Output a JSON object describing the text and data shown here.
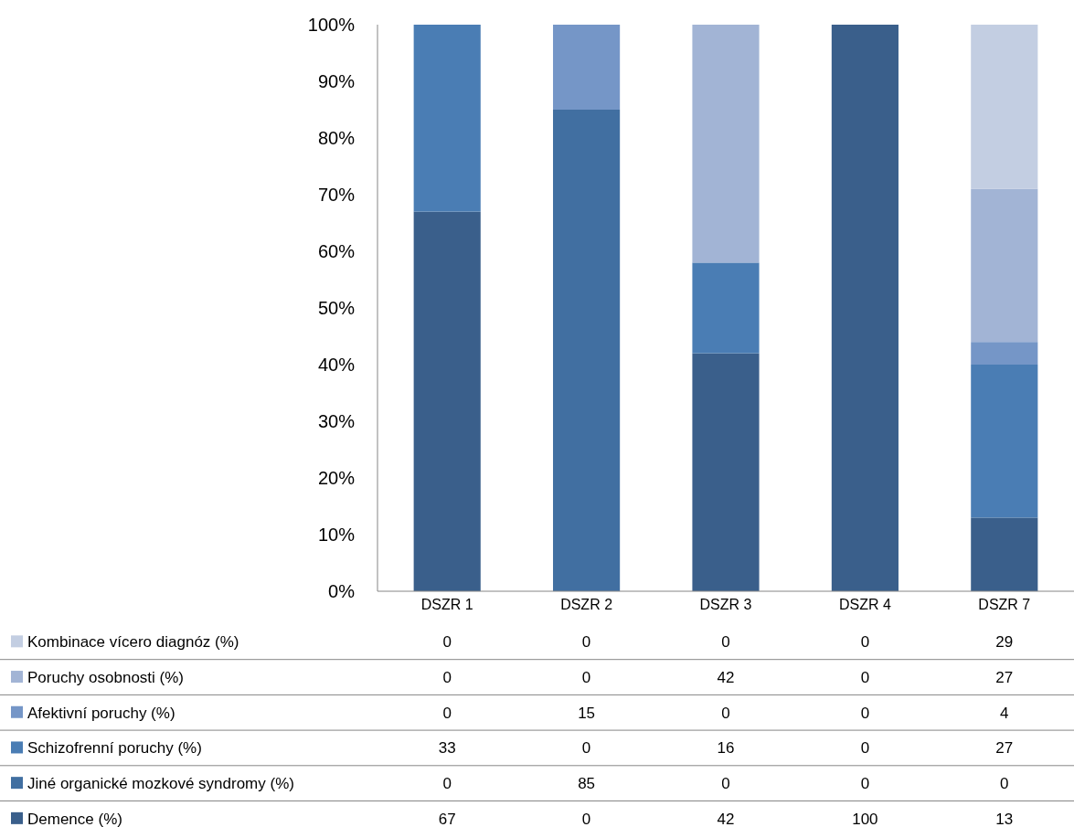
{
  "chart_data": {
    "type": "bar",
    "stacked": true,
    "categories": [
      "DSZR 1",
      "DSZR 2",
      "DSZR 3",
      "DSZR 4",
      "DSZR 7"
    ],
    "series": [
      {
        "name": "Demence (%)",
        "color": "#3a5f8b",
        "values": [
          67,
          0,
          42,
          100,
          13
        ]
      },
      {
        "name": "Jiné organické mozkové syndromy (%)",
        "color": "#416fa1",
        "values": [
          0,
          85,
          0,
          0,
          0
        ]
      },
      {
        "name": "Schizofrenní poruchy (%)",
        "color": "#4a7db4",
        "values": [
          33,
          0,
          16,
          0,
          27
        ]
      },
      {
        "name": "Afektivní poruchy (%)",
        "color": "#7596c7",
        "values": [
          0,
          15,
          0,
          0,
          4
        ]
      },
      {
        "name": "Poruchy osobnosti (%)",
        "color": "#a2b4d5",
        "values": [
          0,
          0,
          42,
          0,
          27
        ]
      },
      {
        "name": "Kombinace vícero diagnóz (%)",
        "color": "#c3cee2",
        "values": [
          0,
          0,
          0,
          0,
          29
        ]
      }
    ],
    "ylim": [
      0,
      100
    ],
    "yticks": [
      {
        "value": 0,
        "label": "0%"
      },
      {
        "value": 10,
        "label": "10%"
      },
      {
        "value": 20,
        "label": "20%"
      },
      {
        "value": 30,
        "label": "30%"
      },
      {
        "value": 40,
        "label": "40%"
      },
      {
        "value": 50,
        "label": "50%"
      },
      {
        "value": 60,
        "label": "60%"
      },
      {
        "value": 70,
        "label": "70%"
      },
      {
        "value": 80,
        "label": "80%"
      },
      {
        "value": 90,
        "label": "90%"
      },
      {
        "value": 100,
        "label": "100%"
      }
    ],
    "data_labels": true,
    "legend": "bottom",
    "grid": false
  }
}
